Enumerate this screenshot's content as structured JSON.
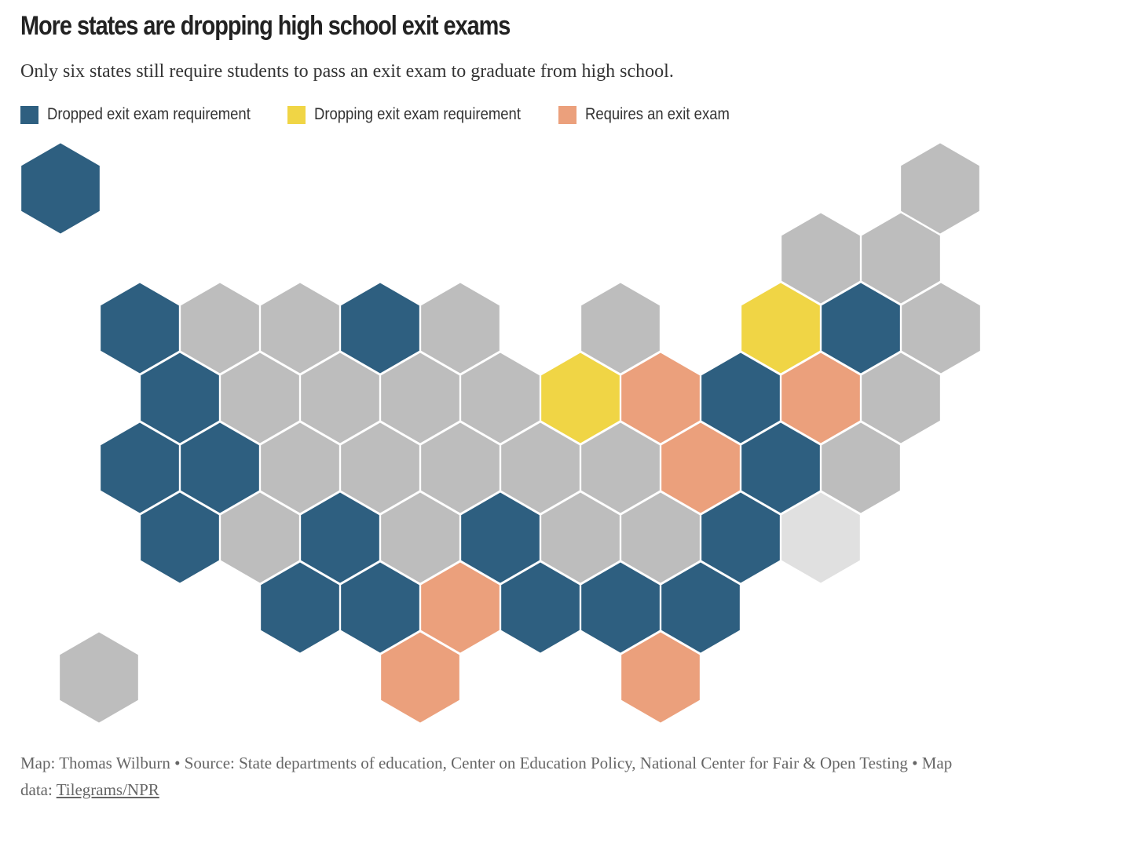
{
  "header": {
    "title": "More states are dropping high school exit exams",
    "subtitle": "Only six states still require students to pass an exit exam to graduate from high school."
  },
  "legend": [
    {
      "label": "Dropped exit exam requirement",
      "color": "#2e5f80"
    },
    {
      "label": "Dropping exit exam requirement",
      "color": "#f0d545"
    },
    {
      "label": "Requires an exit exam",
      "color": "#eba07c"
    }
  ],
  "footer": {
    "credit": "Map: Thomas Wilburn • Source: State departments of education, Center on Education Policy, National Center for Fair & Open Testing • Map data:",
    "link": "Tilegrams/NPR"
  }
}
